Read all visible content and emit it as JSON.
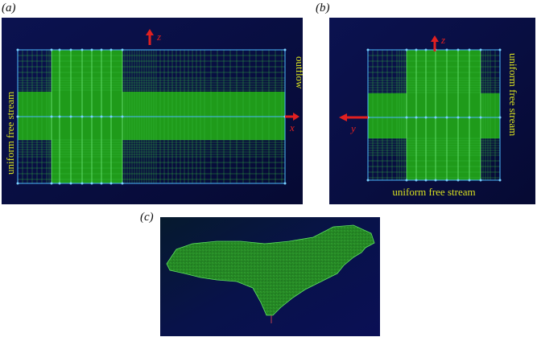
{
  "panels": {
    "a": {
      "label": "(a)",
      "axis_z": "z",
      "axis_x": "x",
      "left_text": "uniform free stream",
      "right_text": "outflow"
    },
    "b": {
      "label": "(b)",
      "axis_z": "z",
      "axis_y": "y",
      "right_text": "uniform free stream",
      "bottom_text": "uniform free stream"
    },
    "c": {
      "label": "(c)"
    }
  },
  "colors": {
    "background": "#0a0f4a",
    "mesh_green": "#1f9b1a",
    "mesh_line": "#3fd34a",
    "frame": "#4db8ff",
    "axis_arrow": "#e02020",
    "caption_yellow": "#d8e020"
  }
}
